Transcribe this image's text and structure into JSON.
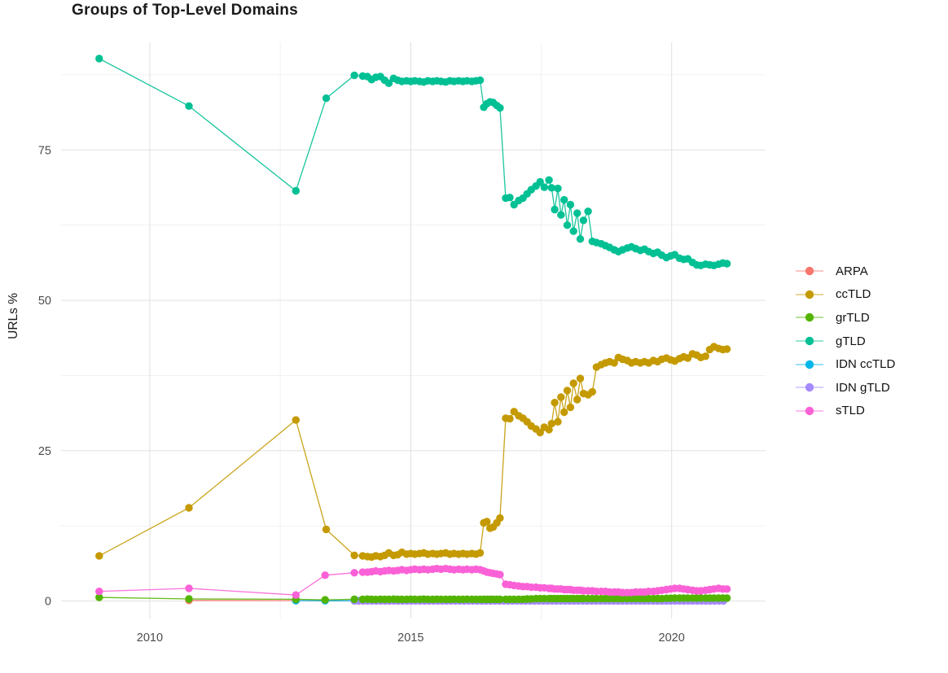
{
  "chart_data": {
    "type": "scatter-line",
    "title": "Groups of Top-Level Domains",
    "xlabel": "",
    "ylabel": "URLs %",
    "grid": "on",
    "legend_position": "right",
    "axes": {
      "x": {
        "ticks": [
          2010,
          2015,
          2020
        ],
        "minor": [
          2012.5,
          2017.5
        ],
        "domain": [
          2008.3,
          2021.8
        ]
      },
      "y": {
        "ticks": [
          0,
          25,
          50,
          75
        ],
        "minor": [
          12.5,
          37.5,
          62.5,
          87.5
        ],
        "domain": [
          -2.9,
          92.9
        ]
      }
    },
    "tick_label_color": "#4d4d4d",
    "major_grid_color": "#e4e4e4",
    "minor_grid_color": "#f1f1f1",
    "series": [
      {
        "name": "ARPA",
        "color": "#F8766D",
        "segments": [
          {
            "x": [
              2010.75,
              2012.8
            ],
            "y": [
              0.1,
              0.08
            ]
          },
          {
            "xrange": [
              2013.92,
              2021.06,
              0.0842
            ],
            "yconst": 0.05
          }
        ]
      },
      {
        "name": "ccTLD",
        "color": "#C49A00",
        "segments": [
          {
            "x": [
              2009.03,
              2010.75,
              2012.8,
              2013.38,
              2013.92,
              2014.08,
              2014.17,
              2014.25,
              2014.33,
              2014.42,
              2014.5,
              2014.58,
              2014.67,
              2014.75,
              2014.83,
              2014.92,
              2015.0,
              2015.08,
              2015.17,
              2015.25,
              2015.33,
              2015.42,
              2015.5,
              2015.58,
              2015.67,
              2015.75,
              2015.83,
              2015.92,
              2016.0,
              2016.08,
              2016.17,
              2016.25,
              2016.33,
              2016.4,
              2016.46,
              2016.52,
              2016.58,
              2016.65,
              2016.71,
              2016.82,
              2016.9,
              2016.98,
              2017.07,
              2017.15,
              2017.23,
              2017.31,
              2017.4,
              2017.48,
              2017.56,
              2017.65,
              2017.7,
              2017.76,
              2017.82,
              2017.88,
              2017.94,
              2018.0,
              2018.06,
              2018.12,
              2018.19,
              2018.25,
              2018.31,
              2018.4,
              2018.48,
              2018.56,
              2018.65,
              2018.73,
              2018.81,
              2018.9,
              2018.98,
              2019.06,
              2019.15,
              2019.23,
              2019.31,
              2019.4,
              2019.48,
              2019.56,
              2019.65,
              2019.73,
              2019.81,
              2019.9,
              2019.98,
              2020.06,
              2020.15,
              2020.23,
              2020.31,
              2020.4,
              2020.48,
              2020.56,
              2020.65,
              2020.73,
              2020.81,
              2020.9,
              2020.98,
              2021.06
            ],
            "y": [
              7.5,
              15.5,
              30.1,
              11.9,
              7.6,
              7.5,
              7.4,
              7.3,
              7.5,
              7.4,
              7.6,
              8.0,
              7.6,
              7.7,
              8.1,
              7.8,
              7.9,
              7.8,
              7.9,
              8.0,
              7.8,
              7.9,
              7.8,
              7.9,
              8.0,
              7.8,
              7.9,
              7.8,
              7.9,
              7.8,
              7.9,
              7.8,
              8.0,
              13.0,
              13.2,
              12.1,
              12.3,
              13.0,
              13.8,
              30.4,
              30.3,
              31.5,
              30.8,
              30.4,
              29.8,
              29.1,
              28.6,
              28.0,
              28.9,
              28.5,
              29.5,
              33.0,
              29.8,
              33.9,
              31.4,
              35.0,
              32.2,
              36.2,
              33.5,
              37.0,
              34.5,
              34.3,
              34.8,
              38.9,
              39.3,
              39.6,
              39.8,
              39.6,
              40.5,
              40.2,
              40.0,
              39.6,
              39.8,
              39.6,
              39.8,
              39.6,
              40.0,
              39.8,
              40.2,
              40.4,
              40.1,
              39.9,
              40.3,
              40.6,
              40.4,
              41.1,
              40.9,
              40.5,
              40.7,
              41.8,
              42.3,
              42.0,
              41.8,
              41.9
            ]
          }
        ]
      },
      {
        "name": "grTLD",
        "color": "#53B400",
        "segments": [
          {
            "x": [
              2009.03,
              2010.75,
              2012.8,
              2013.36,
              2013.92,
              2014.08,
              2014.17,
              2014.25,
              2014.33,
              2014.42,
              2014.5,
              2014.58,
              2014.67,
              2014.75,
              2014.83,
              2014.92,
              2015.0,
              2015.08,
              2015.17,
              2015.25,
              2015.33,
              2015.42,
              2015.5,
              2015.58,
              2015.67,
              2015.75,
              2015.83,
              2015.92,
              2016.0,
              2016.08,
              2016.17,
              2016.25,
              2016.33,
              2016.4,
              2016.46,
              2016.52,
              2016.58,
              2016.65,
              2016.71,
              2016.82,
              2016.9,
              2016.98,
              2017.07,
              2017.15,
              2017.23,
              2017.31,
              2017.4,
              2017.48,
              2017.56,
              2017.65,
              2017.7,
              2017.76,
              2017.82,
              2017.88,
              2017.94,
              2018.0,
              2018.06,
              2018.12,
              2018.19,
              2018.25,
              2018.31,
              2018.4,
              2018.48,
              2018.56,
              2018.65,
              2018.73,
              2018.81,
              2018.9,
              2018.98,
              2019.06,
              2019.15,
              2019.23,
              2019.31,
              2019.4,
              2019.48,
              2019.56,
              2019.65,
              2019.73,
              2019.81,
              2019.9,
              2019.98,
              2020.06,
              2020.15,
              2020.23,
              2020.31,
              2020.4,
              2020.48,
              2020.56,
              2020.65,
              2020.73,
              2020.81,
              2020.9,
              2020.98,
              2021.06
            ],
            "y": [
              0.6,
              0.35,
              0.3,
              0.2,
              0.3,
              0.28,
              0.32,
              0.3,
              0.27,
              0.31,
              0.3,
              0.29,
              0.32,
              0.3,
              0.28,
              0.3,
              0.31,
              0.29,
              0.3,
              0.32,
              0.3,
              0.28,
              0.31,
              0.3,
              0.29,
              0.3,
              0.31,
              0.3,
              0.29,
              0.31,
              0.3,
              0.3,
              0.3,
              0.3,
              0.3,
              0.3,
              0.3,
              0.3,
              0.3,
              0.3,
              0.3,
              0.3,
              0.3,
              0.3,
              0.35,
              0.35,
              0.4,
              0.4,
              0.4,
              0.4,
              0.4,
              0.4,
              0.4,
              0.4,
              0.4,
              0.4,
              0.4,
              0.4,
              0.4,
              0.4,
              0.4,
              0.4,
              0.4,
              0.4,
              0.4,
              0.4,
              0.4,
              0.4,
              0.4,
              0.4,
              0.4,
              0.4,
              0.4,
              0.4,
              0.4,
              0.4,
              0.4,
              0.4,
              0.4,
              0.45,
              0.45,
              0.5,
              0.5,
              0.5,
              0.5,
              0.5,
              0.5,
              0.5,
              0.5,
              0.5,
              0.5,
              0.5,
              0.5,
              0.5
            ]
          }
        ]
      },
      {
        "name": "gTLD",
        "color": "#00C094",
        "segments": [
          {
            "x": [
              2009.03,
              2010.75,
              2012.8,
              2013.38,
              2013.92,
              2014.08,
              2014.17,
              2014.25,
              2014.33,
              2014.42,
              2014.5,
              2014.58,
              2014.67,
              2014.75,
              2014.83,
              2014.92,
              2015.0,
              2015.08,
              2015.17,
              2015.25,
              2015.33,
              2015.42,
              2015.5,
              2015.58,
              2015.67,
              2015.75,
              2015.83,
              2015.92,
              2016.0,
              2016.08,
              2016.17,
              2016.25,
              2016.33,
              2016.4,
              2016.46,
              2016.52,
              2016.58,
              2016.65,
              2016.71,
              2016.82,
              2016.9,
              2016.98,
              2017.07,
              2017.15,
              2017.23,
              2017.31,
              2017.4,
              2017.48,
              2017.56,
              2017.65,
              2017.7,
              2017.76,
              2017.82,
              2017.88,
              2017.94,
              2018.0,
              2018.06,
              2018.12,
              2018.19,
              2018.25,
              2018.31,
              2018.4,
              2018.48,
              2018.56,
              2018.65,
              2018.73,
              2018.81,
              2018.9,
              2018.98,
              2019.06,
              2019.15,
              2019.23,
              2019.31,
              2019.4,
              2019.48,
              2019.56,
              2019.65,
              2019.73,
              2019.81,
              2019.9,
              2019.98,
              2020.06,
              2020.15,
              2020.23,
              2020.31,
              2020.4,
              2020.48,
              2020.56,
              2020.65,
              2020.73,
              2020.81,
              2020.9,
              2020.98,
              2021.06
            ],
            "y": [
              90.2,
              82.3,
              68.2,
              83.6,
              87.4,
              87.3,
              87.2,
              86.7,
              87.1,
              87.2,
              86.6,
              86.1,
              86.9,
              86.6,
              86.4,
              86.5,
              86.4,
              86.5,
              86.4,
              86.3,
              86.5,
              86.4,
              86.5,
              86.4,
              86.3,
              86.5,
              86.4,
              86.5,
              86.4,
              86.5,
              86.4,
              86.5,
              86.6,
              82.1,
              82.7,
              83.0,
              82.9,
              82.4,
              82.0,
              67.0,
              67.1,
              65.9,
              66.6,
              67.0,
              67.7,
              68.4,
              69.0,
              69.7,
              68.8,
              70.0,
              68.7,
              65.1,
              68.6,
              64.2,
              66.7,
              62.5,
              65.9,
              61.5,
              64.5,
              60.2,
              63.3,
              64.8,
              59.8,
              59.6,
              59.4,
              59.1,
              58.8,
              58.4,
              58.1,
              58.4,
              58.7,
              58.9,
              58.6,
              58.3,
              58.5,
              58.1,
              57.8,
              58.0,
              57.5,
              57.1,
              57.4,
              57.6,
              57.0,
              56.8,
              56.9,
              56.3,
              55.9,
              55.8,
              56.0,
              55.9,
              55.8,
              56.0,
              56.2,
              56.1
            ]
          }
        ]
      },
      {
        "name": "IDN ccTLD",
        "color": "#00B6EB",
        "segments": [
          {
            "x": [
              2012.8,
              2013.36
            ],
            "y": [
              0.06,
              0.05
            ]
          },
          {
            "xrange": [
              2013.92,
              2021.06,
              0.0842
            ],
            "yconst": 0.05
          }
        ]
      },
      {
        "name": "IDN gTLD",
        "color": "#A58AFF",
        "segments": [
          {
            "xrange": [
              2013.92,
              2021.06,
              0.0842
            ],
            "yconst": 0.02
          }
        ]
      },
      {
        "name": "sTLD",
        "color": "#FB61D7",
        "segments": [
          {
            "x": [
              2009.03,
              2010.75,
              2012.8,
              2013.36,
              2013.92,
              2014.08,
              2014.17,
              2014.25,
              2014.33,
              2014.42,
              2014.5,
              2014.58,
              2014.67,
              2014.75,
              2014.83,
              2014.92,
              2015.0,
              2015.08,
              2015.17,
              2015.25,
              2015.33,
              2015.42,
              2015.5,
              2015.58,
              2015.67,
              2015.75,
              2015.83,
              2015.92,
              2016.0,
              2016.08,
              2016.17,
              2016.25,
              2016.33,
              2016.4,
              2016.46,
              2016.52,
              2016.58,
              2016.65,
              2016.71,
              2016.82,
              2016.9,
              2016.98,
              2017.07,
              2017.15,
              2017.23,
              2017.31,
              2017.4,
              2017.48,
              2017.56,
              2017.65,
              2017.7,
              2017.76,
              2017.82,
              2017.88,
              2017.94,
              2018.0,
              2018.06,
              2018.12,
              2018.19,
              2018.25,
              2018.31,
              2018.4,
              2018.48,
              2018.56,
              2018.65,
              2018.73,
              2018.81,
              2018.9,
              2018.98,
              2019.06,
              2019.15,
              2019.23,
              2019.31,
              2019.4,
              2019.48,
              2019.56,
              2019.65,
              2019.73,
              2019.81,
              2019.9,
              2019.98,
              2020.06,
              2020.15,
              2020.23,
              2020.31,
              2020.4,
              2020.48,
              2020.56,
              2020.65,
              2020.73,
              2020.81,
              2020.9,
              2020.98,
              2021.06
            ],
            "y": [
              1.6,
              2.1,
              1.0,
              4.3,
              4.7,
              4.8,
              4.8,
              4.9,
              5.0,
              4.9,
              5.0,
              5.1,
              5.0,
              5.1,
              5.2,
              5.1,
              5.2,
              5.3,
              5.2,
              5.3,
              5.2,
              5.3,
              5.4,
              5.3,
              5.4,
              5.3,
              5.2,
              5.3,
              5.2,
              5.3,
              5.2,
              5.3,
              5.2,
              5.0,
              4.8,
              4.7,
              4.6,
              4.5,
              4.4,
              2.8,
              2.7,
              2.6,
              2.5,
              2.4,
              2.4,
              2.3,
              2.3,
              2.2,
              2.2,
              2.1,
              2.1,
              2.0,
              2.0,
              2.0,
              1.9,
              1.9,
              1.9,
              1.8,
              1.8,
              1.8,
              1.7,
              1.7,
              1.7,
              1.6,
              1.6,
              1.6,
              1.5,
              1.5,
              1.5,
              1.4,
              1.4,
              1.4,
              1.5,
              1.5,
              1.5,
              1.6,
              1.6,
              1.7,
              1.8,
              1.9,
              2.0,
              2.1,
              2.1,
              2.0,
              1.9,
              1.8,
              1.7,
              1.7,
              1.8,
              1.9,
              2.0,
              2.1,
              2.0,
              2.0
            ]
          }
        ]
      }
    ]
  }
}
